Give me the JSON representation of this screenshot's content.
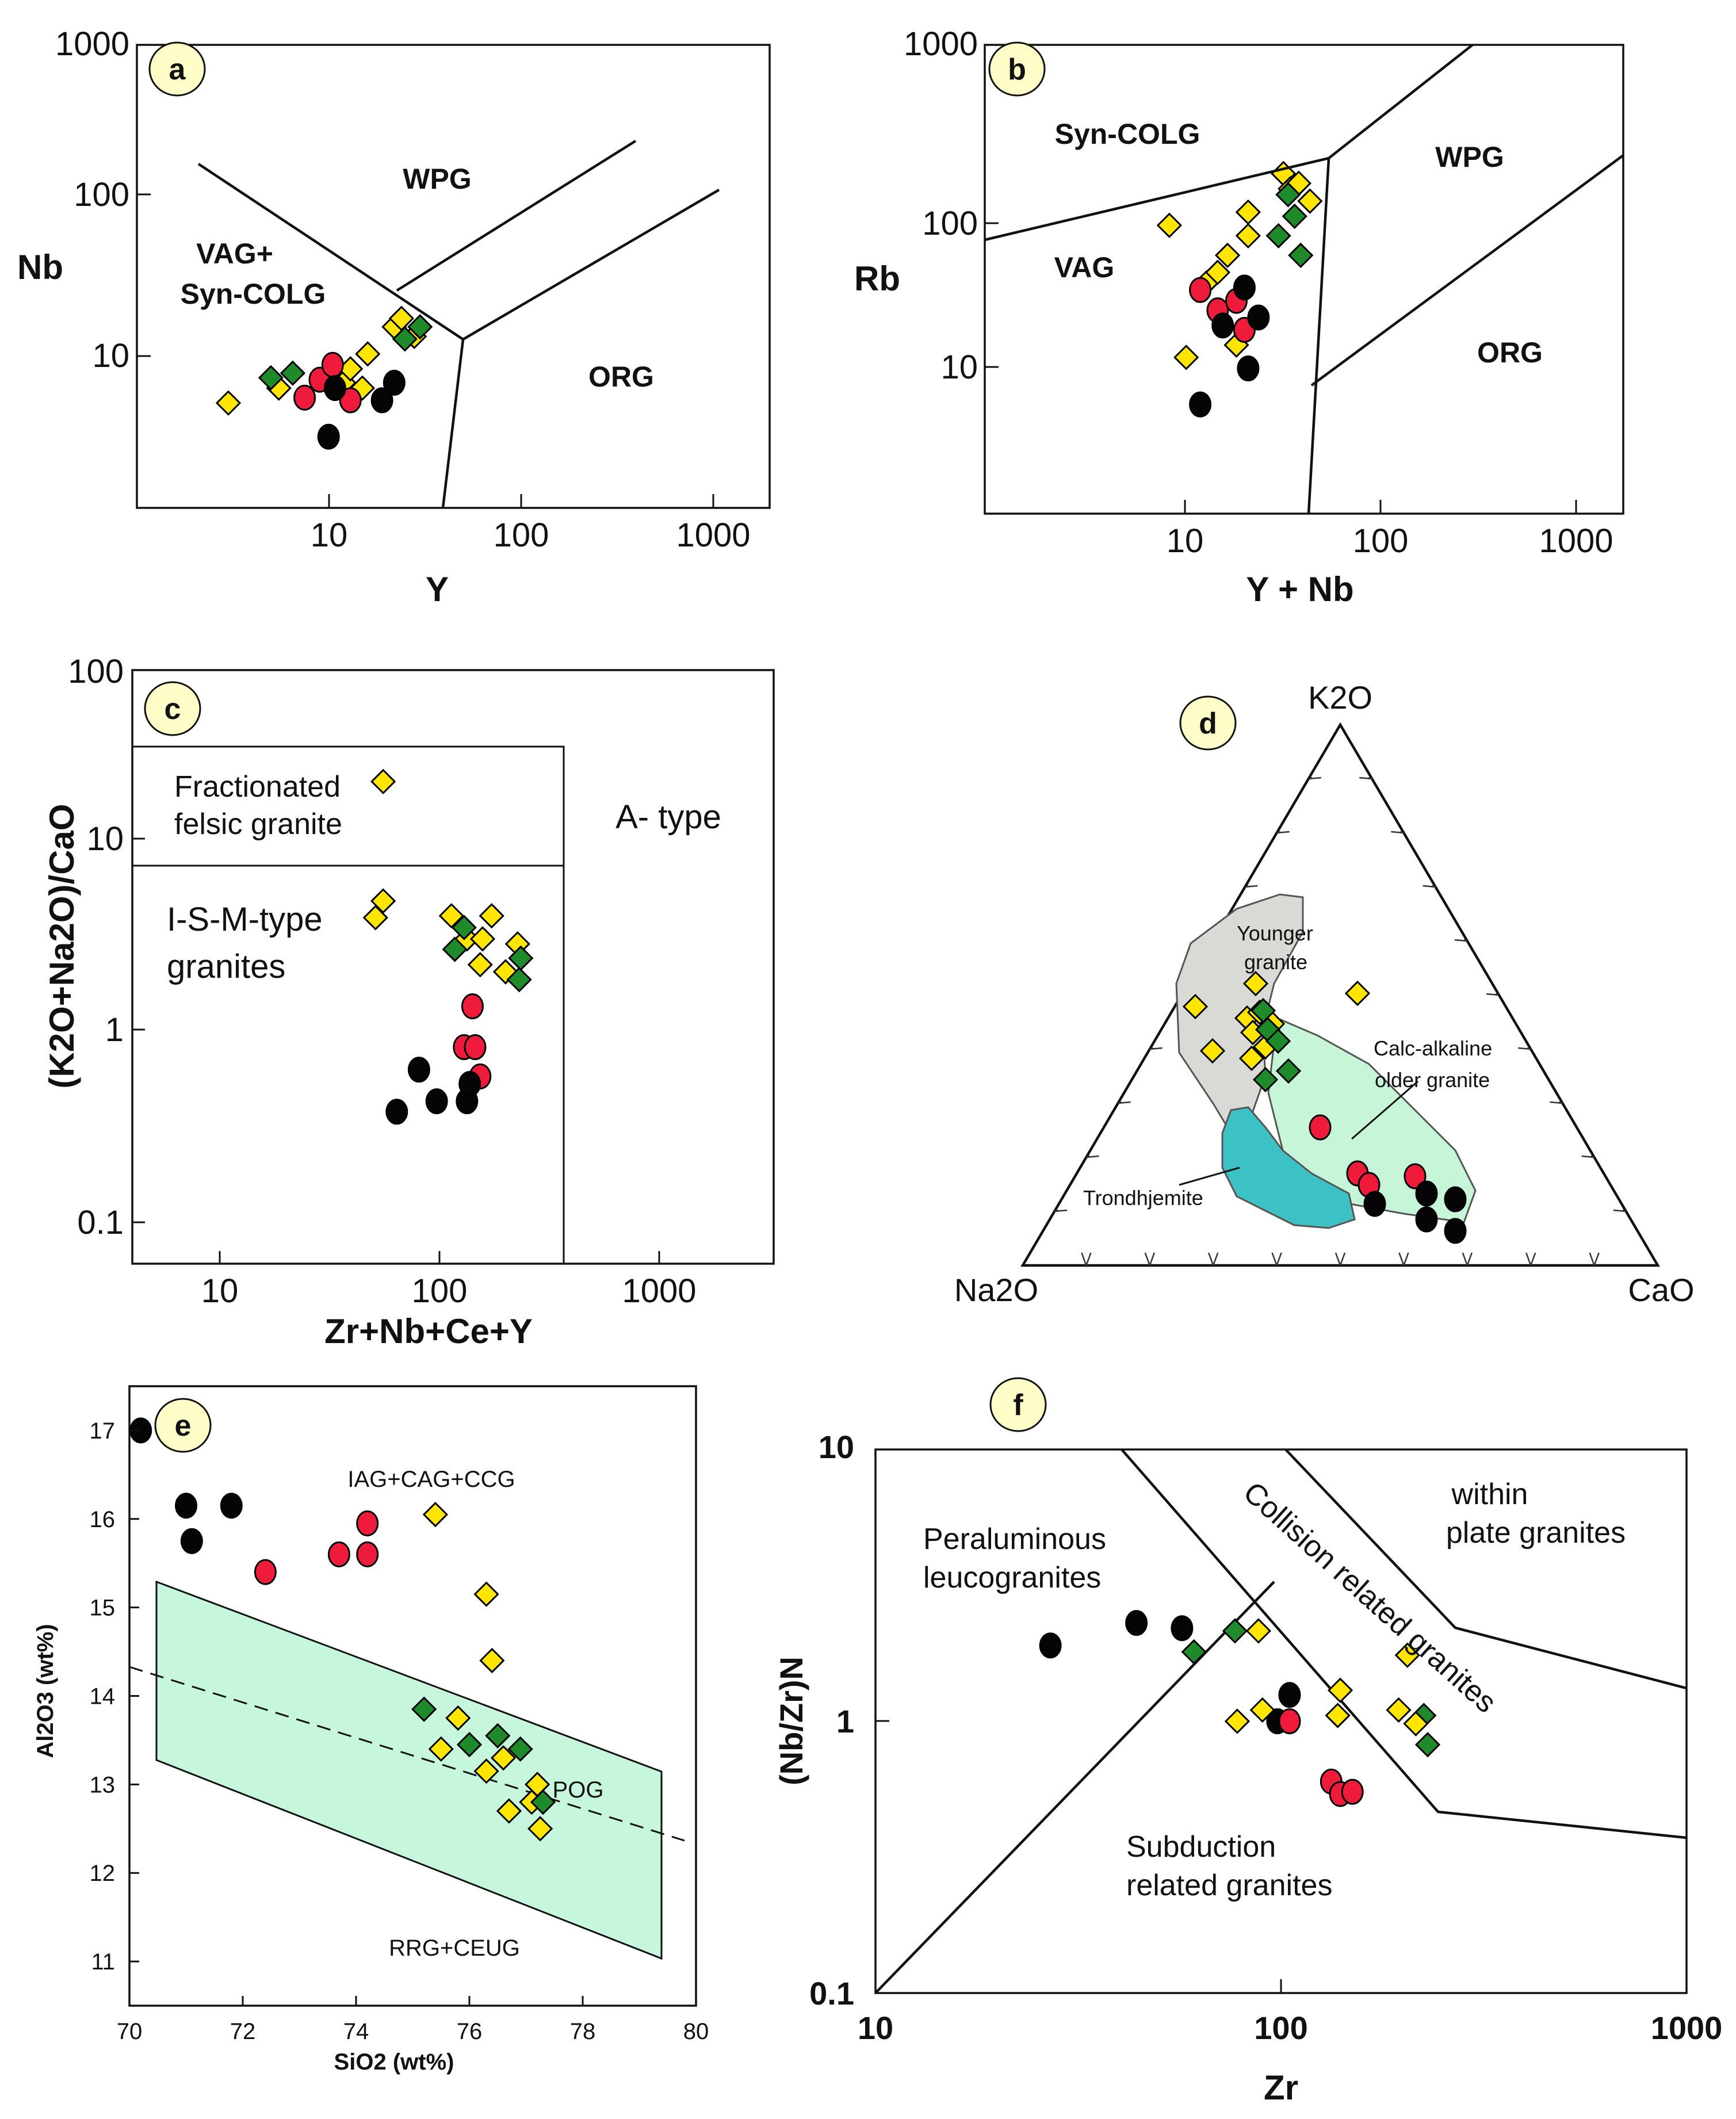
{
  "colors": {
    "circle_black": "#050505",
    "circle_red": "#ee1c3a",
    "diamond_yellow": "#ffe500",
    "diamond_green": "#1e8a2a",
    "panel_badge": "#fffdc8",
    "younger_field": "#d9d9d6",
    "calc_alkaline_field": "#c6f5d8",
    "trondhjemite_field": "#3cc2c4",
    "pog_field": "#c6f7dc"
  },
  "chart_data": [
    {
      "panel": "a",
      "type": "scatter",
      "xlabel": "Y",
      "ylabel": "Nb",
      "xscale": "log",
      "yscale": "log",
      "xlim": [
        1,
        2000
      ],
      "ylim": [
        1,
        1000
      ],
      "xticks": [
        "10",
        "100",
        "1000"
      ],
      "yticks": [
        "10",
        "100",
        "1000"
      ],
      "fields": [
        "WPG",
        "VAG+",
        "Syn-COLG",
        "ORG"
      ],
      "points": [
        {
          "kind": "diamond_yellow",
          "x": 3,
          "y": 4.8
        },
        {
          "kind": "diamond_yellow",
          "x": 5.5,
          "y": 6
        },
        {
          "kind": "diamond_yellow",
          "x": 12,
          "y": 6.5
        },
        {
          "kind": "diamond_yellow",
          "x": 13,
          "y": 8
        },
        {
          "kind": "diamond_yellow",
          "x": 15,
          "y": 6
        },
        {
          "kind": "diamond_yellow",
          "x": 16,
          "y": 10
        },
        {
          "kind": "diamond_yellow",
          "x": 22,
          "y": 15
        },
        {
          "kind": "diamond_yellow",
          "x": 24,
          "y": 17
        },
        {
          "kind": "diamond_yellow",
          "x": 28,
          "y": 13
        },
        {
          "kind": "diamond_green",
          "x": 5,
          "y": 7
        },
        {
          "kind": "diamond_green",
          "x": 6.5,
          "y": 7.5
        },
        {
          "kind": "diamond_green",
          "x": 25,
          "y": 12.5
        },
        {
          "kind": "diamond_green",
          "x": 30,
          "y": 15
        },
        {
          "kind": "circle_red",
          "x": 7.5,
          "y": 5.2
        },
        {
          "kind": "circle_red",
          "x": 9,
          "y": 6.8
        },
        {
          "kind": "circle_red",
          "x": 10.5,
          "y": 8.5
        },
        {
          "kind": "circle_red",
          "x": 13,
          "y": 5
        },
        {
          "kind": "circle_black",
          "x": 10,
          "y": 2.9
        },
        {
          "kind": "circle_black",
          "x": 10.8,
          "y": 6
        },
        {
          "kind": "circle_black",
          "x": 19,
          "y": 5
        },
        {
          "kind": "circle_black",
          "x": 22,
          "y": 6.5
        }
      ]
    },
    {
      "panel": "b",
      "type": "scatter",
      "xlabel": "Y + Nb",
      "ylabel": "Rb",
      "xscale": "log",
      "yscale": "log",
      "xlim": [
        1,
        2000
      ],
      "ylim": [
        1,
        1000
      ],
      "xticks": [
        "10",
        "100",
        "1000"
      ],
      "yticks": [
        "10",
        "100",
        "1000"
      ],
      "fields": [
        "Syn-COLG",
        "WPG",
        "VAG",
        "ORG"
      ],
      "points": [
        {
          "kind": "diamond_yellow",
          "x": 9,
          "y": 70
        },
        {
          "kind": "diamond_yellow",
          "x": 11,
          "y": 10
        },
        {
          "kind": "diamond_yellow",
          "x": 14,
          "y": 30
        },
        {
          "kind": "diamond_yellow",
          "x": 16,
          "y": 35
        },
        {
          "kind": "diamond_yellow",
          "x": 18,
          "y": 45
        },
        {
          "kind": "diamond_yellow",
          "x": 20,
          "y": 12
        },
        {
          "kind": "diamond_yellow",
          "x": 23,
          "y": 60
        },
        {
          "kind": "diamond_yellow",
          "x": 23,
          "y": 85
        },
        {
          "kind": "diamond_yellow",
          "x": 35,
          "y": 150
        },
        {
          "kind": "diamond_yellow",
          "x": 38,
          "y": 120
        },
        {
          "kind": "diamond_yellow",
          "x": 42,
          "y": 130
        },
        {
          "kind": "diamond_yellow",
          "x": 48,
          "y": 100
        },
        {
          "kind": "diamond_green",
          "x": 33,
          "y": 60
        },
        {
          "kind": "diamond_green",
          "x": 37,
          "y": 110
        },
        {
          "kind": "diamond_green",
          "x": 40,
          "y": 80
        },
        {
          "kind": "diamond_green",
          "x": 43,
          "y": 45
        },
        {
          "kind": "circle_red",
          "x": 13,
          "y": 27
        },
        {
          "kind": "circle_red",
          "x": 16,
          "y": 20
        },
        {
          "kind": "circle_red",
          "x": 20,
          "y": 23
        },
        {
          "kind": "circle_red",
          "x": 22,
          "y": 15
        },
        {
          "kind": "circle_black",
          "x": 13,
          "y": 5
        },
        {
          "kind": "circle_black",
          "x": 17,
          "y": 16
        },
        {
          "kind": "circle_black",
          "x": 22,
          "y": 28
        },
        {
          "kind": "circle_black",
          "x": 23,
          "y": 8.5
        },
        {
          "kind": "circle_black",
          "x": 26,
          "y": 18
        }
      ]
    },
    {
      "panel": "c",
      "type": "scatter",
      "xlabel": "Zr+Nb+Ce+Y",
      "ylabel": "(K2O+Na2O)/CaO",
      "xscale": "log",
      "yscale": "log",
      "xlim": [
        3.5,
        5000
      ],
      "ylim": [
        0.05,
        100
      ],
      "xticks": [
        "10",
        "100",
        "1000"
      ],
      "yticks": [
        "0.1",
        "1",
        "10",
        "100"
      ],
      "fields": [
        "Fractionated",
        "felsic granite",
        "A- type",
        "I-S-M-type",
        "granites"
      ],
      "points": [
        {
          "kind": "diamond_yellow",
          "x": 60,
          "y": 24
        },
        {
          "kind": "diamond_yellow",
          "x": 55,
          "y": 4.2
        },
        {
          "kind": "diamond_yellow",
          "x": 60,
          "y": 5.2
        },
        {
          "kind": "diamond_yellow",
          "x": 130,
          "y": 4.3
        },
        {
          "kind": "diamond_yellow",
          "x": 155,
          "y": 3.2
        },
        {
          "kind": "diamond_yellow",
          "x": 180,
          "y": 2.3
        },
        {
          "kind": "diamond_yellow",
          "x": 185,
          "y": 3.2
        },
        {
          "kind": "diamond_yellow",
          "x": 205,
          "y": 4.3
        },
        {
          "kind": "diamond_yellow",
          "x": 240,
          "y": 2.1
        },
        {
          "kind": "diamond_yellow",
          "x": 275,
          "y": 3.0
        },
        {
          "kind": "diamond_green",
          "x": 135,
          "y": 2.8
        },
        {
          "kind": "diamond_green",
          "x": 150,
          "y": 3.7
        },
        {
          "kind": "diamond_green",
          "x": 280,
          "y": 1.9
        },
        {
          "kind": "diamond_green",
          "x": 285,
          "y": 2.5
        },
        {
          "kind": "circle_red",
          "x": 150,
          "y": 0.8
        },
        {
          "kind": "circle_red",
          "x": 165,
          "y": 1.35
        },
        {
          "kind": "circle_red",
          "x": 170,
          "y": 0.8
        },
        {
          "kind": "circle_red",
          "x": 180,
          "y": 0.55
        },
        {
          "kind": "circle_black",
          "x": 70,
          "y": 0.35
        },
        {
          "kind": "circle_black",
          "x": 90,
          "y": 0.6
        },
        {
          "kind": "circle_black",
          "x": 110,
          "y": 0.4
        },
        {
          "kind": "circle_black",
          "x": 155,
          "y": 0.4
        },
        {
          "kind": "circle_black",
          "x": 160,
          "y": 0.5
        }
      ]
    },
    {
      "panel": "d",
      "type": "scatter",
      "ternary": true,
      "apices": {
        "top": "K2O",
        "left": "Na2O",
        "right": "CaO"
      },
      "fields": [
        "Younger granite",
        "Calc-alkaline older granite",
        "Trondhjemite"
      ],
      "points_note": "yellow/green diamonds plot in Younger granite field; red and black circles along the Calc-alkaline older granite trend"
    },
    {
      "panel": "e",
      "type": "scatter",
      "xlabel": "SiO2 (wt%)",
      "ylabel": "Al2O3 (wt%)",
      "xlim": [
        70,
        80
      ],
      "ylim": [
        10.5,
        17.5
      ],
      "xticks": [
        "70",
        "72",
        "74",
        "76",
        "78",
        "80"
      ],
      "yticks": [
        "11",
        "12",
        "13",
        "14",
        "15",
        "16",
        "17"
      ],
      "fields": [
        "IAG+CAG+CCG",
        "POG",
        "RRG+CEUG"
      ],
      "points": [
        {
          "kind": "circle_black",
          "x": 70.2,
          "y": 17.0
        },
        {
          "kind": "circle_black",
          "x": 71.0,
          "y": 16.15
        },
        {
          "kind": "circle_black",
          "x": 71.1,
          "y": 15.75
        },
        {
          "kind": "circle_black",
          "x": 71.8,
          "y": 16.15
        },
        {
          "kind": "circle_red",
          "x": 72.4,
          "y": 15.4
        },
        {
          "kind": "circle_red",
          "x": 73.7,
          "y": 15.6
        },
        {
          "kind": "circle_red",
          "x": 74.2,
          "y": 15.6
        },
        {
          "kind": "circle_red",
          "x": 74.2,
          "y": 15.95
        },
        {
          "kind": "diamond_yellow",
          "x": 75.4,
          "y": 16.05
        },
        {
          "kind": "diamond_yellow",
          "x": 75.5,
          "y": 13.4
        },
        {
          "kind": "diamond_yellow",
          "x": 75.8,
          "y": 13.75
        },
        {
          "kind": "diamond_yellow",
          "x": 76.3,
          "y": 15.15
        },
        {
          "kind": "diamond_yellow",
          "x": 76.3,
          "y": 13.15
        },
        {
          "kind": "diamond_yellow",
          "x": 76.4,
          "y": 14.4
        },
        {
          "kind": "diamond_yellow",
          "x": 76.6,
          "y": 13.3
        },
        {
          "kind": "diamond_yellow",
          "x": 76.7,
          "y": 12.7
        },
        {
          "kind": "diamond_yellow",
          "x": 77.1,
          "y": 12.8
        },
        {
          "kind": "diamond_yellow",
          "x": 77.2,
          "y": 13.0
        },
        {
          "kind": "diamond_yellow",
          "x": 77.25,
          "y": 12.5
        },
        {
          "kind": "diamond_green",
          "x": 75.2,
          "y": 13.85
        },
        {
          "kind": "diamond_green",
          "x": 76.0,
          "y": 13.45
        },
        {
          "kind": "diamond_green",
          "x": 76.5,
          "y": 13.55
        },
        {
          "kind": "diamond_green",
          "x": 76.9,
          "y": 13.4
        },
        {
          "kind": "diamond_green",
          "x": 77.3,
          "y": 12.8
        }
      ]
    },
    {
      "panel": "f",
      "type": "scatter",
      "xlabel": "Zr",
      "ylabel": "(Nb/Zr)N",
      "xscale": "log",
      "yscale": "log",
      "xlim": [
        10,
        1000
      ],
      "ylim": [
        0.1,
        10
      ],
      "xticks": [
        "10",
        "100",
        "1000"
      ],
      "yticks": [
        "0.1",
        "1",
        "10"
      ],
      "fields": [
        "Peraluminous",
        "leucogranites",
        "within",
        "plate granites",
        "Collision related granites",
        "Subduction",
        "related granites"
      ],
      "points": [
        {
          "kind": "circle_black",
          "x": 27,
          "y": 1.9
        },
        {
          "kind": "circle_black",
          "x": 44,
          "y": 2.3
        },
        {
          "kind": "circle_black",
          "x": 57,
          "y": 2.2
        },
        {
          "kind": "circle_black",
          "x": 98,
          "y": 1.0
        },
        {
          "kind": "circle_black",
          "x": 105,
          "y": 1.25
        },
        {
          "kind": "circle_red",
          "x": 105,
          "y": 1.0
        },
        {
          "kind": "circle_red",
          "x": 133,
          "y": 0.6
        },
        {
          "kind": "circle_red",
          "x": 140,
          "y": 0.54
        },
        {
          "kind": "circle_red",
          "x": 150,
          "y": 0.55
        },
        {
          "kind": "diamond_green",
          "x": 61,
          "y": 1.8
        },
        {
          "kind": "diamond_green",
          "x": 77,
          "y": 2.15
        },
        {
          "kind": "diamond_green",
          "x": 225,
          "y": 1.05
        },
        {
          "kind": "diamond_green",
          "x": 230,
          "y": 0.82
        },
        {
          "kind": "diamond_yellow",
          "x": 78,
          "y": 1.0
        },
        {
          "kind": "diamond_yellow",
          "x": 88,
          "y": 2.15
        },
        {
          "kind": "diamond_yellow",
          "x": 90,
          "y": 1.1
        },
        {
          "kind": "diamond_yellow",
          "x": 138,
          "y": 1.05
        },
        {
          "kind": "diamond_yellow",
          "x": 140,
          "y": 1.3
        },
        {
          "kind": "diamond_yellow",
          "x": 195,
          "y": 1.1
        },
        {
          "kind": "diamond_yellow",
          "x": 205,
          "y": 1.75
        },
        {
          "kind": "diamond_yellow",
          "x": 215,
          "y": 0.98
        }
      ]
    }
  ],
  "panels": {
    "a": {
      "badge": "a",
      "xlabel": "Y",
      "ylabel": "Nb",
      "xticks": [
        "10",
        "100",
        "1000"
      ],
      "yticks": [
        "10",
        "100",
        "1000"
      ],
      "f1": "WPG",
      "f2": "VAG+",
      "f3": "Syn-COLG",
      "f4": "ORG"
    },
    "b": {
      "badge": "b",
      "xlabel": "Y + Nb",
      "ylabel": "Rb",
      "xticks": [
        "10",
        "100",
        "1000"
      ],
      "yticks": [
        "10",
        "100",
        "1000"
      ],
      "f1": "Syn-COLG",
      "f2": "WPG",
      "f3": "VAG",
      "f4": "ORG"
    },
    "c": {
      "badge": "c",
      "xlabel": "Zr+Nb+Ce+Y",
      "ylabel": "(K2O+Na2O)/CaO",
      "xticks": [
        "10",
        "100",
        "1000"
      ],
      "yticks": [
        "0.1",
        "1",
        "10",
        "100"
      ],
      "f1": "Fractionated",
      "f2": "felsic granite",
      "f3": "A- type",
      "f4": "I-S-M-type",
      "f5": "granites"
    },
    "d": {
      "badge": "d",
      "top": "K2O",
      "left": "Na2O",
      "right": "CaO",
      "f1": "Younger",
      "f2": "granite",
      "f3": "Calc-alkaline",
      "f4": "older granite",
      "f5": "Trondhjemite"
    },
    "e": {
      "badge": "e",
      "xlabel": "SiO2 (wt%)",
      "ylabel": "Al2O3 (wt%)",
      "xticks": [
        "70",
        "72",
        "74",
        "76",
        "78",
        "80"
      ],
      "yticks": [
        "11",
        "12",
        "13",
        "14",
        "15",
        "16",
        "17"
      ],
      "f1": "IAG+CAG+CCG",
      "f2": "POG",
      "f3": "RRG+CEUG"
    },
    "f": {
      "badge": "f",
      "xlabel": "Zr",
      "ylabel": "(Nb/Zr)N",
      "xticks": [
        "10",
        "100",
        "1000"
      ],
      "yticks": [
        "0.1",
        "1",
        "10"
      ],
      "f1": "Peraluminous",
      "f2": "leucogranites",
      "f3": "within",
      "f4": "plate granites",
      "f5": "Collision related granites",
      "f6": "Subduction",
      "f7": "related granites"
    }
  }
}
